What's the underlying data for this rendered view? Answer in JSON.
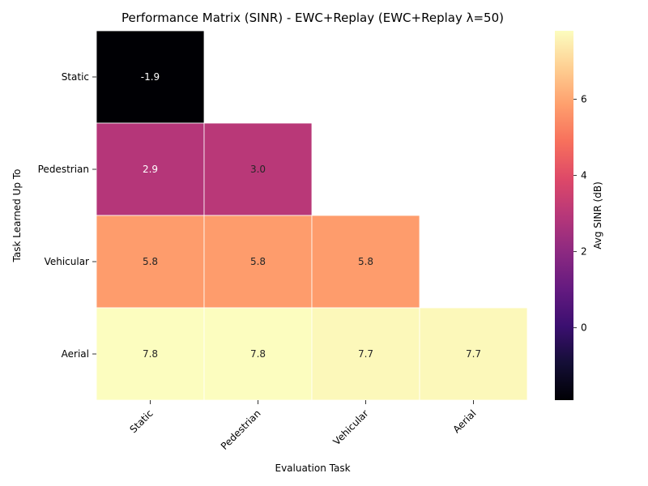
{
  "chart_data": {
    "type": "heatmap",
    "title": "Performance Matrix (SINR) - EWC+Replay (EWC+Replay λ=50)",
    "xlabel": "Evaluation Task",
    "ylabel": "Task Learned Up To",
    "x_categories": [
      "Static",
      "Pedestrian",
      "Vehicular",
      "Aerial"
    ],
    "y_categories": [
      "Static",
      "Pedestrian",
      "Vehicular",
      "Aerial"
    ],
    "matrix": [
      [
        -1.9,
        null,
        null,
        null
      ],
      [
        2.9,
        3.0,
        null,
        null
      ],
      [
        5.8,
        5.8,
        5.8,
        null
      ],
      [
        7.8,
        7.8,
        7.7,
        7.7
      ]
    ],
    "labels": [
      [
        "-1.9",
        "",
        "",
        ""
      ],
      [
        "2.9",
        "3.0",
        "",
        ""
      ],
      [
        "5.8",
        "5.8",
        "5.8",
        ""
      ],
      [
        "7.8",
        "7.8",
        "7.7",
        "7.7"
      ]
    ],
    "colormap": "magma",
    "vmin": -1.9,
    "vmax": 7.8,
    "colorbar": {
      "label": "Avg SINR (dB)",
      "ticks": [
        0,
        2,
        4,
        6
      ],
      "tick_labels": [
        "0",
        "2",
        "4",
        "6"
      ]
    }
  }
}
